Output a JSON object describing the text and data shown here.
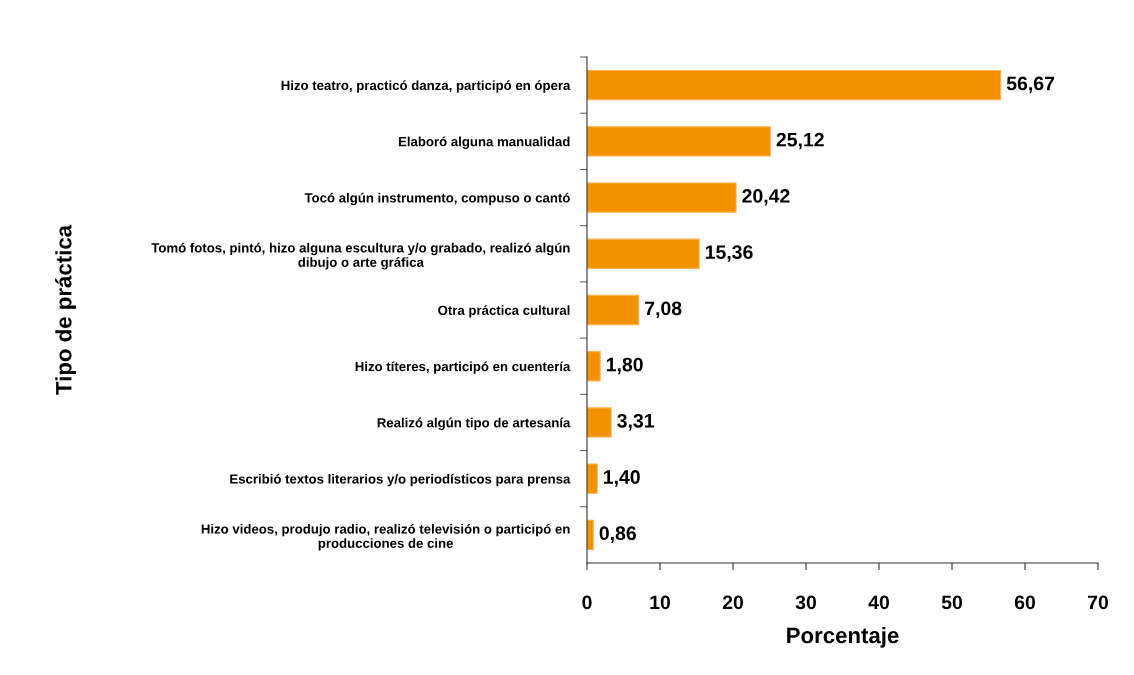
{
  "chart_data": {
    "type": "bar",
    "orientation": "horizontal",
    "categories": [
      "Hizo teatro, practicó danza, participó en ópera",
      "Elaboró alguna manualidad",
      "Tocó algún instrumento, compuso o cantó",
      "Tomó fotos, pintó, hizo alguna escultura y/o grabado, realizó algún\ndibujo o arte gráfica",
      "Otra práctica cultural",
      "Hizo títeres, participó en cuentería",
      "Realizó algún tipo de artesanía",
      "Escribió textos literarios y/o periodísticos para prensa",
      "Hizo videos, produjo radio, realizó televisión o participó en\nproducciones de cine"
    ],
    "values": [
      56.67,
      25.12,
      20.42,
      15.36,
      7.08,
      1.8,
      3.31,
      1.4,
      0.86
    ],
    "value_labels": [
      "56,67",
      "25,12",
      "20,42",
      "15,36",
      "7,08",
      "1,80",
      "3,31",
      "1,40",
      "0,86"
    ],
    "color": "#f39200",
    "xlim": [
      0,
      70
    ],
    "xticks": [
      0,
      10,
      20,
      30,
      40,
      50,
      60,
      70
    ],
    "xlabel": "Porcentaje",
    "ylabel": "Tipo de práctica"
  }
}
